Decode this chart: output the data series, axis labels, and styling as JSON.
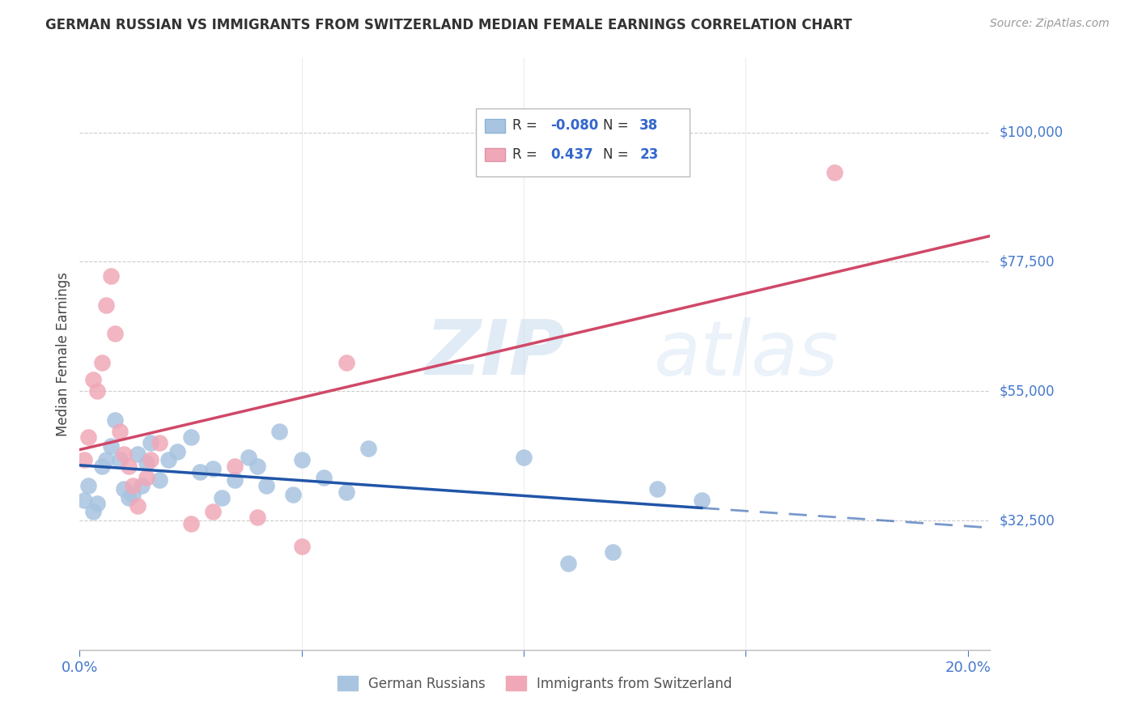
{
  "title": "GERMAN RUSSIAN VS IMMIGRANTS FROM SWITZERLAND MEDIAN FEMALE EARNINGS CORRELATION CHART",
  "source": "Source: ZipAtlas.com",
  "ylabel": "Median Female Earnings",
  "xlim": [
    0.0,
    0.205
  ],
  "ylim": [
    10000,
    113000
  ],
  "yticks_values": [
    32500,
    55000,
    77500,
    100000
  ],
  "ytick_labels": [
    "$32,500",
    "$55,000",
    "$77,500",
    "$100,000"
  ],
  "xtick_positions": [
    0.0,
    0.05,
    0.1,
    0.15,
    0.2
  ],
  "xtick_labels": [
    "0.0%",
    "",
    "",
    "",
    "20.0%"
  ],
  "watermark": "ZIPatlas",
  "blue_R": "-0.080",
  "blue_N": "38",
  "pink_R": "0.437",
  "pink_N": "23",
  "blue_scatter_color": "#a8c4e0",
  "pink_scatter_color": "#f0a8b8",
  "blue_line_color": "#2055a8",
  "pink_line_color": "#d04868",
  "axis_label_color": "#4477cc",
  "title_color": "#333333",
  "source_color": "#999999",
  "grid_color": "#cccccc",
  "legend_value_color": "#3366cc",
  "legend_text_color": "#333333",
  "blue_scatter_x": [
    0.001,
    0.002,
    0.003,
    0.004,
    0.005,
    0.006,
    0.007,
    0.008,
    0.009,
    0.01,
    0.011,
    0.012,
    0.013,
    0.014,
    0.015,
    0.016,
    0.018,
    0.02,
    0.022,
    0.025,
    0.027,
    0.03,
    0.032,
    0.035,
    0.038,
    0.04,
    0.042,
    0.045,
    0.048,
    0.05,
    0.055,
    0.06,
    0.065,
    0.1,
    0.11,
    0.12,
    0.13,
    0.14
  ],
  "blue_scatter_y": [
    36000,
    38500,
    34000,
    35500,
    42000,
    43000,
    45500,
    50000,
    43000,
    38000,
    36500,
    37000,
    44000,
    38500,
    42500,
    46000,
    39500,
    43000,
    44500,
    47000,
    41000,
    41500,
    36500,
    39500,
    43500,
    42000,
    38500,
    48000,
    37000,
    43000,
    40000,
    37500,
    45000,
    43500,
    25000,
    27000,
    38000,
    36000
  ],
  "pink_scatter_x": [
    0.001,
    0.002,
    0.003,
    0.004,
    0.005,
    0.006,
    0.007,
    0.008,
    0.009,
    0.01,
    0.011,
    0.012,
    0.013,
    0.015,
    0.016,
    0.018,
    0.025,
    0.03,
    0.035,
    0.04,
    0.05,
    0.06,
    0.17
  ],
  "pink_scatter_y": [
    43000,
    47000,
    57000,
    55000,
    60000,
    70000,
    75000,
    65000,
    48000,
    44000,
    42000,
    38500,
    35000,
    40000,
    43000,
    46000,
    32000,
    34000,
    42000,
    33000,
    28000,
    60000,
    93000
  ]
}
